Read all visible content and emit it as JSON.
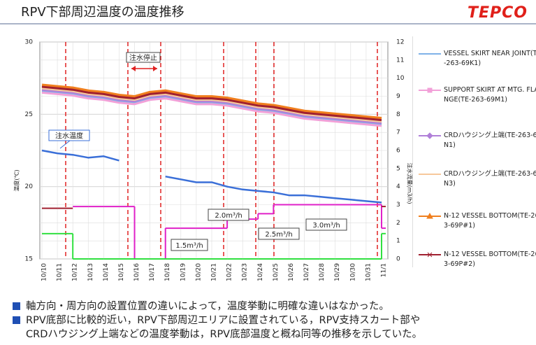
{
  "header": {
    "title": "RPV下部周辺温度の温度推移",
    "logo": "TEPCO"
  },
  "chart_data": {
    "type": "line",
    "y_label": "温度(℃)",
    "y2_label": "注水流量(m3/h)",
    "categories": [
      "10/10",
      "10/11",
      "10/12",
      "10/13",
      "10/14",
      "10/15",
      "10/16",
      "10/17",
      "10/18",
      "10/19",
      "10/20",
      "10/21",
      "10/22",
      "10/23",
      "10/24",
      "10/25",
      "10/26",
      "10/27",
      "10/28",
      "10/29",
      "10/30",
      "10/31",
      "11/1"
    ],
    "ylim": [
      15,
      30
    ],
    "yticks": [
      15,
      20,
      25,
      30
    ],
    "y2lim": [
      0,
      12
    ],
    "y2ticks": [
      0,
      1,
      2,
      3,
      4,
      5,
      6,
      7,
      8,
      9,
      10,
      11,
      12
    ],
    "grid": true,
    "series": [
      {
        "name": "VESSEL SKIRT NEAR JOINT(TE-263-69K1)",
        "color": "#7fb2e8",
        "marker": "none",
        "values": [
          26.6,
          26.5,
          26.4,
          26.2,
          26.1,
          25.9,
          25.8,
          26.1,
          26.2,
          26.0,
          25.8,
          25.8,
          25.7,
          25.5,
          25.3,
          25.2,
          25.0,
          24.8,
          24.7,
          24.6,
          24.5,
          24.4,
          24.3
        ]
      },
      {
        "name": "SUPPORT SKIRT AT MTG. FLANGE(TE-263-69M1)",
        "color": "#f2a0d8",
        "marker": "square",
        "values": [
          26.5,
          26.4,
          26.3,
          26.1,
          26.0,
          25.8,
          25.7,
          26.0,
          26.1,
          25.9,
          25.7,
          25.7,
          25.6,
          25.4,
          25.2,
          25.1,
          24.9,
          24.7,
          24.6,
          24.5,
          24.4,
          24.3,
          24.2
        ]
      },
      {
        "name": "CRDハウジング上端(TE-263-69N1)",
        "color": "#b07fd8",
        "marker": "diamond",
        "values": [
          26.7,
          26.6,
          26.5,
          26.3,
          26.2,
          26.0,
          25.9,
          26.2,
          26.3,
          26.1,
          25.9,
          25.9,
          25.8,
          25.6,
          25.4,
          25.3,
          25.1,
          24.9,
          24.8,
          24.7,
          24.6,
          24.5,
          24.4
        ]
      },
      {
        "name": "CRDハウジング上端(TE-263-69N3)",
        "color": "#f7c89b",
        "marker": "none",
        "values": [
          26.8,
          26.7,
          26.6,
          26.4,
          26.3,
          26.1,
          26.0,
          26.3,
          26.4,
          26.2,
          26.0,
          26.0,
          25.9,
          25.7,
          25.5,
          25.4,
          25.2,
          25.0,
          24.9,
          24.8,
          24.7,
          24.6,
          24.5
        ]
      },
      {
        "name": "N-12 VESSEL BOTTOM(TE-263-69P#1)",
        "color": "#f07f1e",
        "marker": "triangle",
        "values": [
          27.0,
          26.9,
          26.8,
          26.6,
          26.5,
          26.3,
          26.2,
          26.5,
          26.6,
          26.4,
          26.2,
          26.2,
          26.1,
          25.9,
          25.7,
          25.6,
          25.4,
          25.2,
          25.1,
          25.0,
          24.9,
          24.8,
          24.7
        ]
      },
      {
        "name": "N-12 VESSEL BOTTOM(TE-263-69P#2)",
        "color": "#a02030",
        "marker": "cross",
        "values": [
          26.9,
          26.8,
          26.7,
          26.5,
          26.4,
          26.2,
          26.1,
          26.4,
          26.5,
          26.3,
          26.1,
          26.1,
          26.0,
          25.8,
          25.6,
          25.5,
          25.3,
          25.1,
          25.0,
          24.9,
          24.8,
          24.7,
          24.6
        ]
      },
      {
        "color": "#3a6fd8",
        "values": [
          22.5,
          22.3,
          22.2,
          22.0,
          22.1,
          21.8,
          null,
          null,
          20.7,
          20.5,
          20.3,
          20.3,
          20.0,
          19.8,
          19.7,
          19.6,
          19.4,
          19.4,
          19.3,
          19.2,
          19.1,
          19.0,
          18.9
        ]
      },
      {
        "color": "#e020c8",
        "axis": "y2",
        "step": true,
        "values": [
          null,
          null,
          2.9,
          2.9,
          2.9,
          2.9,
          0,
          0,
          1.7,
          1.7,
          1.7,
          1.7,
          2.2,
          2.2,
          2.5,
          3.0,
          3.0,
          3.0,
          3.0,
          3.0,
          3.0,
          3.0,
          1.7
        ]
      },
      {
        "color": "#30e040",
        "axis": "y2",
        "step": true,
        "values": [
          1.4,
          1.4,
          0,
          0,
          0,
          0,
          0,
          0,
          0,
          0,
          0,
          0,
          0,
          0,
          0,
          0,
          0,
          0,
          0,
          0,
          0,
          0,
          1.4
        ]
      },
      {
        "color": "#a02030",
        "axis": "y2",
        "step": true,
        "values": [
          2.8,
          2.8,
          null,
          null,
          null,
          null,
          null,
          null,
          null,
          null,
          null,
          null,
          null,
          null,
          null,
          null,
          null,
          null,
          null,
          null,
          null,
          null,
          2.9
        ]
      }
    ],
    "annotations": [
      "注水停止",
      "注水温度",
      "1.5m³/h",
      "2.0m³/h",
      "2.5m³/h",
      "3.0m³/h"
    ]
  },
  "notes": [
    "軸方向・周方向の設置位置の違いによって，温度挙動に明確な違いはなかった。",
    [
      "RPV底部に比較的近い，RPV下部周辺エリアに設置されている，RPV支持スカート部や",
      "CRDハウジング上端などの温度挙動は，RPV底部温度と概ね同等の推移を示していた。"
    ]
  ]
}
